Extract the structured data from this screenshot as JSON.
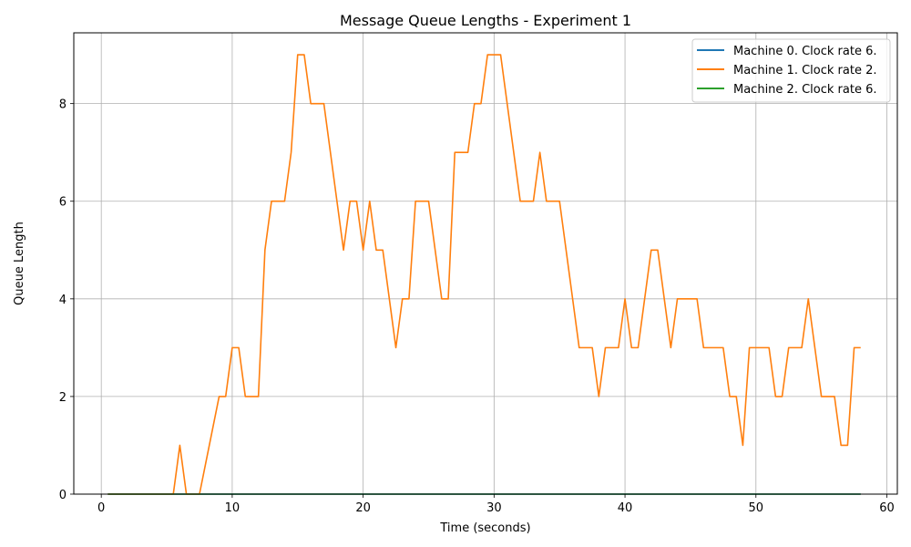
{
  "chart_data": {
    "type": "line",
    "title": "Message Queue Lengths - Experiment 1",
    "xlabel": "Time (seconds)",
    "ylabel": "Queue Length",
    "xlim": [
      -2.1,
      60.8
    ],
    "ylim": [
      0,
      9.45
    ],
    "xticks": [
      0,
      10,
      20,
      30,
      40,
      50,
      60
    ],
    "xtick_labels": [
      "0",
      "10",
      "20",
      "30",
      "40",
      "50",
      "60"
    ],
    "yticks": [
      0,
      2,
      4,
      6,
      8
    ],
    "ytick_labels": [
      "0",
      "2",
      "4",
      "6",
      "8"
    ],
    "grid": true,
    "legend_position": "top-right",
    "series": [
      {
        "name": "Machine 0. Clock rate 6.",
        "color": "#1f77b4",
        "x": [
          0.5,
          58.0
        ],
        "y": [
          0,
          0
        ]
      },
      {
        "name": "Machine 1. Clock rate 2.",
        "color": "#ff7f0e",
        "x": [
          0.5,
          5.5,
          6.0,
          6.5,
          7.5,
          9.0,
          9.5,
          10.0,
          10.5,
          11.0,
          12.0,
          12.5,
          13.0,
          14.0,
          14.5,
          15.0,
          15.5,
          16.0,
          17.0,
          18.5,
          19.0,
          19.5,
          20.0,
          20.5,
          21.0,
          21.5,
          22.5,
          23.0,
          23.5,
          24.0,
          25.0,
          26.0,
          26.5,
          27.0,
          28.0,
          28.5,
          29.0,
          29.5,
          30.5,
          32.0,
          33.0,
          33.5,
          34.0,
          35.0,
          36.5,
          37.5,
          38.0,
          38.5,
          39.5,
          40.0,
          40.5,
          41.0,
          42.0,
          42.5,
          43.5,
          44.0,
          45.5,
          46.0,
          47.5,
          48.0,
          48.5,
          49.0,
          49.5,
          51.0,
          51.5,
          52.0,
          52.5,
          53.5,
          54.0,
          55.0,
          56.0,
          56.5,
          57.0,
          57.5,
          58.0
        ],
        "y": [
          0,
          0,
          1,
          0,
          0,
          2,
          2,
          3,
          3,
          2,
          2,
          5,
          6,
          6,
          7,
          9,
          9,
          8,
          8,
          5,
          6,
          6,
          5,
          6,
          5,
          5,
          3,
          4,
          4,
          6,
          6,
          4,
          4,
          7,
          7,
          8,
          8,
          9,
          9,
          6,
          6,
          7,
          6,
          6,
          3,
          3,
          2,
          3,
          3,
          4,
          3,
          3,
          5,
          5,
          3,
          4,
          4,
          3,
          3,
          2,
          2,
          1,
          3,
          3,
          2,
          2,
          3,
          3,
          4,
          2,
          2,
          1,
          1,
          3,
          3
        ]
      },
      {
        "name": "Machine 2. Clock rate 6.",
        "color": "#2ca02c",
        "x": [
          0.5,
          58.0
        ],
        "y": [
          0,
          0
        ]
      }
    ]
  }
}
